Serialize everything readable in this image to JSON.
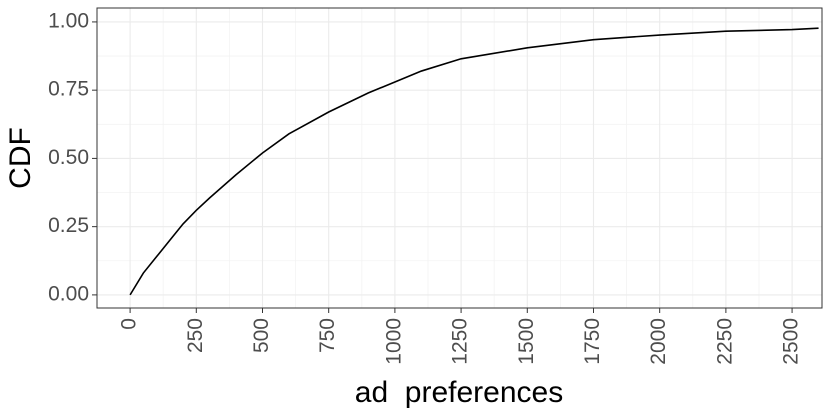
{
  "chart_data": {
    "type": "line",
    "x_label": "ad  preferences",
    "y_label": "CDF",
    "x": [
      0,
      50,
      100,
      150,
      200,
      250,
      300,
      400,
      500,
      600,
      750,
      900,
      1000,
      1100,
      1250,
      1500,
      1750,
      2000,
      2250,
      2500,
      2600
    ],
    "values": [
      0,
      0.08,
      0.14,
      0.2,
      0.26,
      0.31,
      0.355,
      0.44,
      0.52,
      0.59,
      0.67,
      0.74,
      0.78,
      0.82,
      0.865,
      0.905,
      0.935,
      0.952,
      0.966,
      0.972,
      0.977
    ],
    "color": "#000000",
    "xlim": [
      -125,
      2613
    ],
    "ylim": [
      -0.048,
      1.051
    ],
    "xticks": [
      0,
      250,
      500,
      750,
      1000,
      1250,
      1500,
      1750,
      2000,
      2250,
      2500
    ],
    "yticks": [
      {
        "value": 0,
        "label": "0.00"
      },
      {
        "value": 0.25,
        "label": "0.25"
      },
      {
        "value": 0.5,
        "label": "0.50"
      },
      {
        "value": 0.75,
        "label": "0.75"
      },
      {
        "value": 1,
        "label": "1.00"
      }
    ],
    "grid": true
  }
}
